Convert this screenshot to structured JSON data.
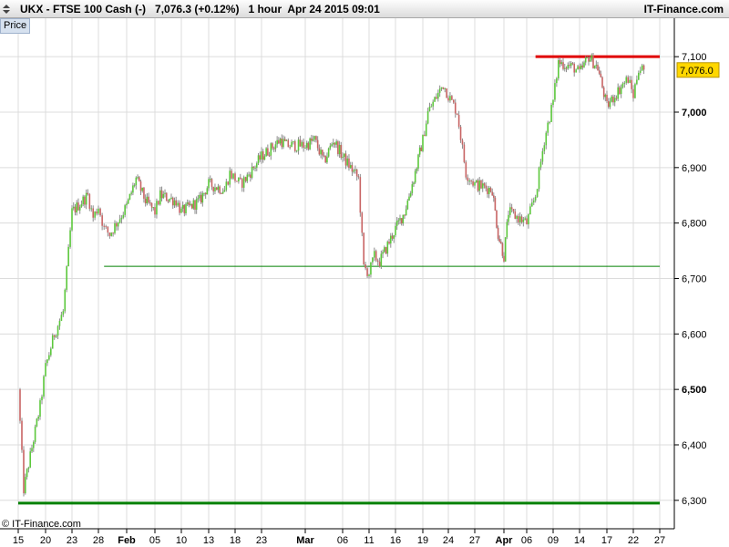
{
  "header": {
    "symbol": "UKX - FTSE 100 Cash (-)",
    "quote": "7,076.3 (+0.12%)",
    "timeframe": "1 hour",
    "timestamp": "Apr 24 2015 09:01",
    "brand": "IT-Finance.com"
  },
  "price_tab": "Price",
  "copyright": "© IT-Finance.com",
  "colors": {
    "up": "#5cc83c",
    "down": "#c86464",
    "wick": "#8c8c8c",
    "resistance": "#e00000",
    "support": "#008000",
    "grid": "#dcdcdc",
    "badge": "#ffd700"
  },
  "chart_data": {
    "type": "candlestick",
    "title": "UKX - FTSE 100 Cash (-)",
    "timeframe": "1 hour",
    "ylim": [
      6270,
      7140
    ],
    "y_ticks": [
      "7,100",
      "7,000",
      "6,900",
      "6,800",
      "6,700",
      "6,600",
      "6,500",
      "6,400",
      "6,300"
    ],
    "y_bold_ticks": [
      "7,000",
      "6,500"
    ],
    "x_ticks": [
      "15",
      "20",
      "23",
      "28",
      "Feb",
      "05",
      "10",
      "13",
      "18",
      "23",
      "Mar",
      "06",
      "11",
      "16",
      "19",
      "24",
      "27",
      "Apr",
      "06",
      "09",
      "14",
      "17",
      "22",
      "27"
    ],
    "x_bold_ticks": [
      "Feb",
      "Mar",
      "Apr"
    ],
    "last_price": "7,076.0",
    "price_path": [
      [
        "15 Jan",
        6500
      ],
      [
        "16 Jan",
        6320
      ],
      [
        "19 Jan",
        6470
      ],
      [
        "20 Jan",
        6540
      ],
      [
        "21 Jan",
        6600
      ],
      [
        "22 Jan",
        6640
      ],
      [
        "23 Jan",
        6820
      ],
      [
        "26 Jan",
        6850
      ],
      [
        "27 Jan",
        6810
      ],
      [
        "28 Jan",
        6830
      ],
      [
        "29 Jan",
        6790
      ],
      [
        "30 Jan",
        6780
      ],
      [
        "02 Feb",
        6830
      ],
      [
        "03 Feb",
        6880
      ],
      [
        "04 Feb",
        6840
      ],
      [
        "05 Feb",
        6820
      ],
      [
        "06 Feb",
        6850
      ],
      [
        "09 Feb",
        6840
      ],
      [
        "10 Feb",
        6820
      ],
      [
        "11 Feb",
        6830
      ],
      [
        "12 Feb",
        6840
      ],
      [
        "13 Feb",
        6870
      ],
      [
        "16 Feb",
        6860
      ],
      [
        "17 Feb",
        6890
      ],
      [
        "18 Feb",
        6880
      ],
      [
        "19 Feb",
        6870
      ],
      [
        "20 Feb",
        6880
      ],
      [
        "23 Feb",
        6920
      ],
      [
        "24 Feb",
        6930
      ],
      [
        "25 Feb",
        6940
      ],
      [
        "26 Feb",
        6950
      ],
      [
        "27 Feb",
        6940
      ],
      [
        "02 Mar",
        6940
      ],
      [
        "03 Mar",
        6950
      ],
      [
        "04 Mar",
        6910
      ],
      [
        "05 Mar",
        6950
      ],
      [
        "06 Mar",
        6920
      ],
      [
        "09 Mar",
        6880
      ],
      [
        "10 Mar",
        6720
      ],
      [
        "11 Mar",
        6710
      ],
      [
        "12 Mar",
        6740
      ],
      [
        "13 Mar",
        6730
      ],
      [
        "16 Mar",
        6790
      ],
      [
        "17 Mar",
        6820
      ],
      [
        "18 Mar",
        6880
      ],
      [
        "19 Mar",
        6950
      ],
      [
        "20 Mar",
        7000
      ],
      [
        "23 Mar",
        7050
      ],
      [
        "24 Mar",
        7030
      ],
      [
        "25 Mar",
        7000
      ],
      [
        "26 Mar",
        6890
      ],
      [
        "27 Mar",
        6870
      ],
      [
        "30 Mar",
        6860
      ],
      [
        "31 Mar",
        6780
      ],
      [
        "01 Apr",
        6740
      ],
      [
        "02 Apr",
        6820
      ],
      [
        "06 Apr",
        6800
      ],
      [
        "07 Apr",
        6850
      ],
      [
        "08 Apr",
        6950
      ],
      [
        "09 Apr",
        7020
      ],
      [
        "10 Apr",
        7090
      ],
      [
        "13 Apr",
        7080
      ],
      [
        "14 Apr",
        7070
      ],
      [
        "15 Apr",
        7100
      ],
      [
        "16 Apr",
        7080
      ],
      [
        "17 Apr",
        7010
      ],
      [
        "20 Apr",
        7050
      ],
      [
        "21 Apr",
        7060
      ],
      [
        "22 Apr",
        7030
      ],
      [
        "23 Apr",
        7080
      ],
      [
        "24 Apr",
        7076
      ]
    ],
    "levels": [
      {
        "kind": "resistance",
        "value": 7100,
        "from": "07 Apr",
        "to": "27 Apr"
      },
      {
        "kind": "support",
        "value": 6722,
        "from": "29 Jan",
        "to": "27 Apr"
      },
      {
        "kind": "support",
        "value": 6295,
        "from": "15 Jan",
        "to": "27 Apr"
      }
    ],
    "grid": true
  }
}
